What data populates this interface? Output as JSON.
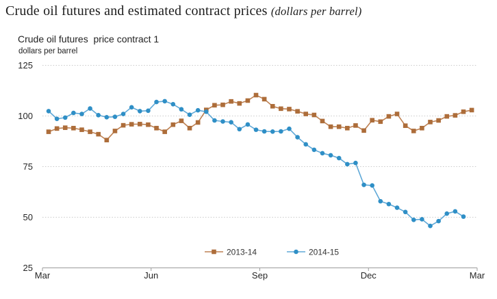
{
  "header": {
    "title": "Crude oil futures and estimated contract prices",
    "title_suffix": "(dollars per barrel)"
  },
  "chart_data": {
    "type": "line",
    "title": "Crude oil futures and estimated contract prices",
    "title_suffix": "(dollars per barrel)",
    "subtitle": "Crude oil futures  price contract 1",
    "ylabel": "dollars per barrel",
    "ylim": [
      25,
      125
    ],
    "yticks": [
      25,
      50,
      75,
      100,
      125
    ],
    "xticks": [
      "Mar",
      "Jun",
      "Sep",
      "Dec",
      "Mar"
    ],
    "x_unit": "weekly",
    "grid": "horizontal-dotted",
    "legend_position": "bottom-center",
    "axis_color": "#9b9b9b",
    "grid_color": "#c9c9c9",
    "label_color": "#262626",
    "series": [
      {
        "name": "2013-14",
        "marker": "square",
        "color": "#ad6d3a",
        "line_color": "#bd8052",
        "values": [
          92.2,
          93.8,
          94.2,
          94.0,
          93.2,
          92.2,
          91.0,
          88.1,
          92.6,
          95.4,
          95.9,
          96.0,
          95.7,
          94.0,
          92.2,
          95.7,
          97.6,
          94.0,
          96.8,
          103.0,
          105.3,
          105.5,
          107.2,
          106.2,
          107.6,
          110.3,
          108.3,
          104.8,
          103.6,
          103.4,
          102.3,
          101.0,
          100.5,
          97.5,
          94.7,
          94.7,
          94.0,
          95.3,
          92.8,
          97.9,
          97.2,
          99.8,
          101.0,
          95.2,
          92.6,
          94.0,
          97.0,
          97.8,
          99.8,
          100.3,
          102.1,
          102.9
        ]
      },
      {
        "name": "2014-15",
        "marker": "circle",
        "color": "#2f8fc6",
        "line_color": "#5fa8d7",
        "values": [
          102.4,
          98.6,
          99.2,
          101.5,
          101.0,
          103.7,
          100.4,
          99.4,
          99.6,
          101.0,
          104.3,
          102.4,
          102.6,
          106.9,
          107.3,
          105.8,
          103.3,
          100.6,
          102.8,
          102.1,
          97.8,
          97.3,
          96.9,
          93.5,
          95.8,
          93.2,
          92.4,
          92.3,
          92.4,
          93.7,
          89.5,
          86.0,
          83.3,
          81.6,
          80.6,
          79.2,
          76.2,
          76.8,
          66.0,
          65.7,
          57.9,
          56.5,
          54.7,
          52.6,
          48.7,
          49.0,
          45.7,
          48.1,
          51.8,
          52.9,
          50.3
        ]
      }
    ]
  }
}
